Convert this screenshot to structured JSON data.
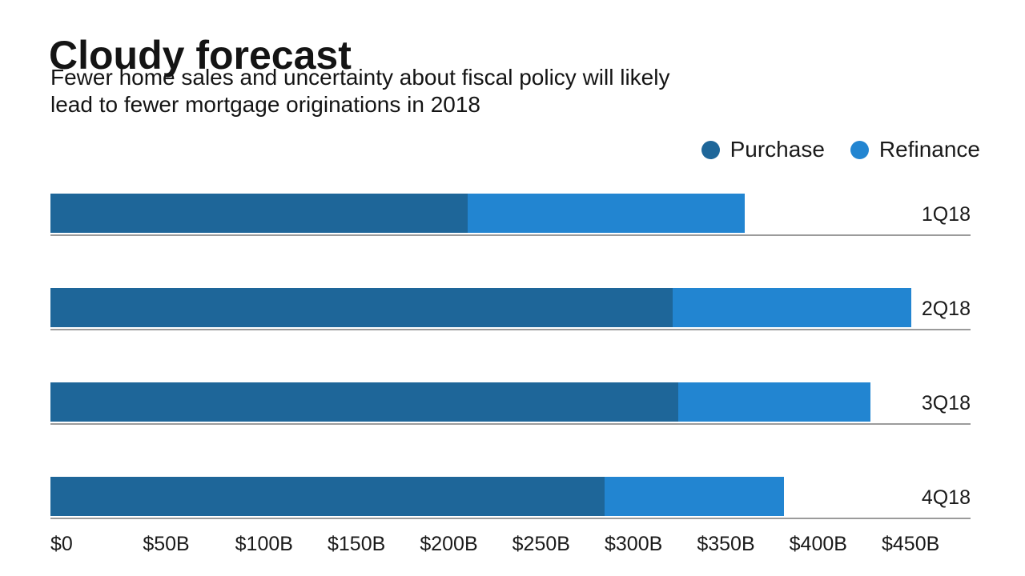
{
  "page": {
    "title": "Cloudy forecast",
    "subtitle_lines": [
      "Fewer home sales and uncertainty about fiscal policy will likely",
      "lead to fewer mortgage originations in 2018"
    ]
  },
  "colors": {
    "purchase": "#1E6699",
    "refinance": "#2285D1",
    "text": "#1A1A1A",
    "rule": "#9B9B9B",
    "background": "#FFFFFF"
  },
  "legend": {
    "items": [
      {
        "label": "Purchase",
        "color": "#1E6699"
      },
      {
        "label": "Refinance",
        "color": "#2285D1"
      }
    ]
  },
  "chart_data": {
    "type": "bar",
    "orientation": "horizontal",
    "stacked": true,
    "title": "Cloudy forecast",
    "subtitle": "Fewer home sales and uncertainty about fiscal policy will likely lead to fewer mortgage originations in 2018",
    "categories": [
      "1Q18",
      "2Q18",
      "3Q18",
      "4Q18"
    ],
    "series": [
      {
        "name": "Purchase",
        "color": "#1E6699",
        "values": [
          226,
          337,
          340,
          300
        ]
      },
      {
        "name": "Refinance",
        "color": "#2285D1",
        "values": [
          150,
          129,
          104,
          97
        ]
      }
    ],
    "unit": "USD billions",
    "x_ticks": [
      "$0",
      "$50B",
      "$100B",
      "$150B",
      "$200B",
      "$250B",
      "$300B",
      "$350B",
      "$400B",
      "$450B"
    ],
    "xlim": [
      0,
      450
    ],
    "ylabel": "",
    "xlabel": "",
    "grid": false,
    "legend_position": "top-right",
    "category_label_position": "right"
  }
}
